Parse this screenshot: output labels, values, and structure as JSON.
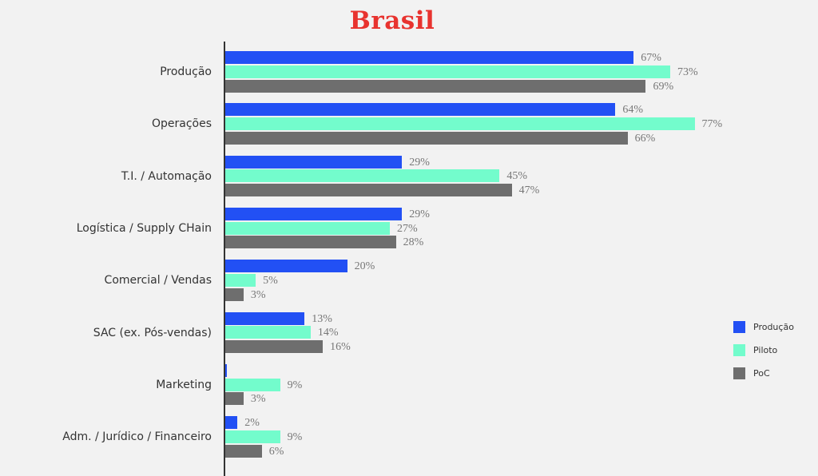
{
  "chart_data": {
    "type": "bar",
    "orientation": "horizontal",
    "title": "Brasil",
    "xlabel": "",
    "ylabel": "",
    "xlim": [
      0,
      100
    ],
    "grid": false,
    "legend_position": "right",
    "categories": [
      "Produção",
      "Operações",
      "T.I. / Automação",
      "Logística / Supply CHain",
      "Comercial / Vendas",
      "SAC (ex. Pós-vendas)",
      "Marketing",
      "Adm. / Jurídico / Financeiro"
    ],
    "series": [
      {
        "name": "Produção",
        "color": "#2250f4",
        "values": [
          67,
          64,
          29,
          29,
          20,
          13,
          0,
          2
        ],
        "labels": [
          "67%",
          "64%",
          "29%",
          "29%",
          "20%",
          "13%",
          "",
          "2%"
        ]
      },
      {
        "name": "Piloto",
        "color": "#73fccc",
        "values": [
          73,
          77,
          45,
          27,
          5,
          14,
          9,
          9
        ],
        "labels": [
          "73%",
          "77%",
          "45%",
          "27%",
          "5%",
          "14%",
          "9%",
          "9%"
        ]
      },
      {
        "name": "PoC",
        "color": "#6e6e6e",
        "values": [
          69,
          66,
          47,
          28,
          3,
          16,
          3,
          6
        ],
        "labels": [
          "69%",
          "66%",
          "47%",
          "28%",
          "3%",
          "16%",
          "3%",
          "6%"
        ]
      }
    ]
  },
  "colors": {
    "title": "#e8332f",
    "background": "#f2f2f2"
  }
}
